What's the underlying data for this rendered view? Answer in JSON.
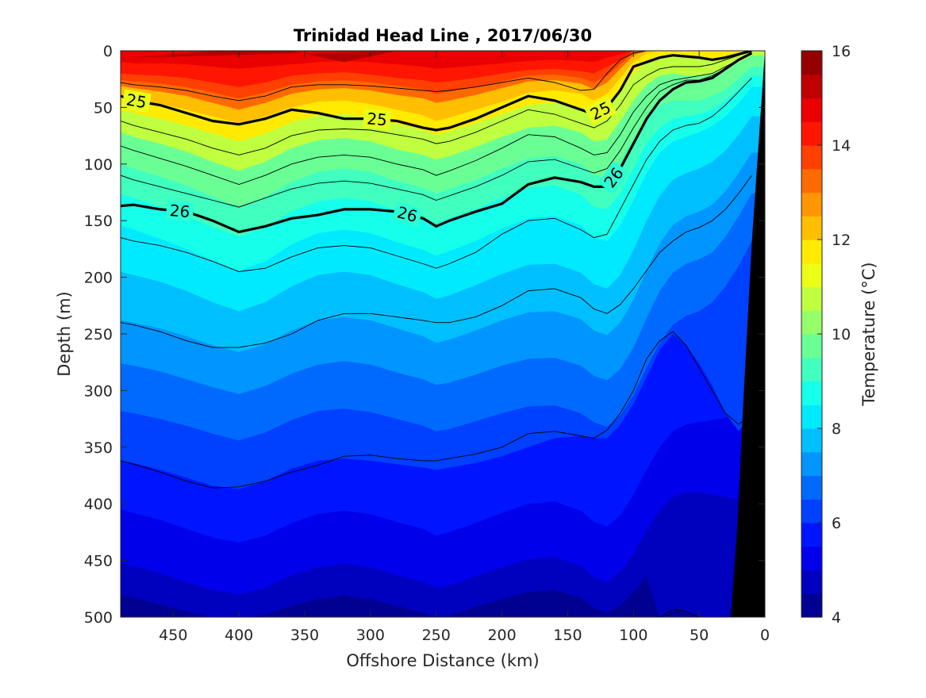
{
  "chart_data": {
    "type": "contour",
    "title": "Trinidad Head Line , 2017/06/30",
    "xlabel": "Offshore Distance (km)",
    "ylabel": "Depth (m)",
    "x_axis": {
      "lim": [
        490,
        0
      ],
      "reversed": true,
      "ticks": [
        "450",
        "400",
        "350",
        "300",
        "250",
        "200",
        "150",
        "100",
        "50",
        "0"
      ]
    },
    "y_axis": {
      "lim": [
        0,
        500
      ],
      "reversed": true,
      "ticks": [
        "0",
        "50",
        "100",
        "150",
        "200",
        "250",
        "300",
        "350",
        "400",
        "450",
        "500"
      ]
    },
    "colorbar": {
      "label": "Temperature (°C)",
      "range": [
        4,
        16
      ],
      "ticks": [
        "4",
        "6",
        "8",
        "10",
        "12",
        "14",
        "16"
      ],
      "colormap": "jet",
      "levels": 24
    },
    "x_km": [
      490,
      480,
      460,
      440,
      420,
      400,
      380,
      360,
      340,
      320,
      300,
      280,
      260,
      250,
      240,
      220,
      200,
      180,
      160,
      140,
      130,
      120,
      110,
      100,
      90,
      80,
      70,
      60,
      50,
      40,
      30,
      20,
      10
    ],
    "isotherm_depths": [
      {
        "temp": 14.5,
        "depths": [
          10,
          11,
          11,
          12,
          14,
          16,
          14,
          12,
          10,
          9,
          10,
          12,
          14,
          16,
          15,
          13,
          11,
          9,
          8,
          9,
          10,
          6,
          3,
          0,
          0,
          0,
          0,
          0,
          0,
          0,
          0,
          0,
          0
        ]
      },
      {
        "temp": 14.0,
        "depths": [
          20,
          21,
          22,
          24,
          28,
          32,
          28,
          22,
          20,
          19,
          21,
          24,
          26,
          28,
          27,
          24,
          20,
          17,
          16,
          18,
          20,
          14,
          8,
          0,
          0,
          0,
          0,
          0,
          0,
          0,
          0,
          0,
          0
        ]
      },
      {
        "temp": 13.5,
        "depths": [
          26,
          27,
          29,
          32,
          37,
          42,
          37,
          30,
          27,
          26,
          28,
          31,
          34,
          38,
          36,
          32,
          27,
          22,
          21,
          24,
          28,
          22,
          12,
          2,
          0,
          0,
          0,
          0,
          0,
          0,
          0,
          0,
          0
        ]
      },
      {
        "temp": 13.0,
        "depths": [
          31,
          33,
          36,
          40,
          46,
          52,
          46,
          38,
          34,
          33,
          35,
          39,
          42,
          46,
          44,
          39,
          33,
          27,
          26,
          29,
          34,
          28,
          16,
          4,
          0,
          0,
          0,
          0,
          0,
          0,
          0,
          0,
          0
        ]
      },
      {
        "temp": 12.0,
        "depths": [
          40,
          43,
          47,
          52,
          58,
          64,
          58,
          50,
          45,
          44,
          47,
          52,
          57,
          62,
          59,
          52,
          45,
          37,
          35,
          38,
          44,
          38,
          24,
          10,
          2,
          0,
          0,
          0,
          0,
          0,
          0,
          0,
          0
        ]
      },
      {
        "temp": 11.5,
        "depths": [
          52,
          55,
          60,
          66,
          73,
          80,
          73,
          63,
          57,
          56,
          59,
          65,
          70,
          74,
          71,
          64,
          56,
          48,
          46,
          50,
          56,
          50,
          36,
          20,
          10,
          6,
          4,
          5,
          6,
          8,
          6,
          3,
          0
        ]
      },
      {
        "temp": 10.5,
        "depths": [
          72,
          76,
          82,
          89,
          98,
          106,
          98,
          86,
          79,
          77,
          80,
          87,
          92,
          96,
          93,
          85,
          76,
          68,
          66,
          72,
          80,
          78,
          62,
          44,
          30,
          22,
          20,
          22,
          22,
          20,
          16,
          10,
          4
        ]
      },
      {
        "temp": 9.5,
        "depths": [
          100,
          104,
          111,
          119,
          129,
          138,
          129,
          116,
          107,
          104,
          107,
          115,
          121,
          126,
          122,
          114,
          104,
          95,
          93,
          100,
          110,
          112,
          98,
          78,
          58,
          48,
          44,
          44,
          44,
          40,
          34,
          24,
          14
        ]
      },
      {
        "temp": 9.0,
        "depths": [
          126,
          130,
          138,
          146,
          156,
          164,
          156,
          142,
          133,
          130,
          133,
          141,
          147,
          152,
          148,
          140,
          130,
          121,
          119,
          127,
          138,
          140,
          126,
          104,
          82,
          68,
          60,
          58,
          56,
          52,
          44,
          34,
          22
        ]
      },
      {
        "temp": 8.5,
        "depths": [
          154,
          158,
          166,
          175,
          185,
          194,
          186,
          171,
          161,
          158,
          161,
          169,
          176,
          181,
          177,
          168,
          157,
          148,
          146,
          154,
          165,
          168,
          154,
          132,
          108,
          90,
          80,
          76,
          72,
          66,
          58,
          46,
          32
        ]
      },
      {
        "temp": 8.0,
        "depths": [
          195,
          198,
          204,
          212,
          222,
          230,
          222,
          208,
          198,
          195,
          198,
          206,
          213,
          219,
          216,
          207,
          197,
          189,
          188,
          196,
          206,
          210,
          198,
          176,
          150,
          128,
          114,
          108,
          104,
          98,
          88,
          74,
          58
        ]
      },
      {
        "temp": 7.5,
        "depths": [
          238,
          240,
          245,
          252,
          260,
          266,
          259,
          247,
          238,
          235,
          238,
          245,
          252,
          258,
          255,
          247,
          238,
          231,
          230,
          237,
          247,
          251,
          240,
          220,
          194,
          170,
          154,
          146,
          142,
          136,
          124,
          108,
          90
        ]
      },
      {
        "temp": 7.0,
        "depths": [
          276,
          278,
          283,
          290,
          297,
          303,
          296,
          285,
          277,
          274,
          277,
          284,
          290,
          295,
          293,
          286,
          278,
          272,
          271,
          278,
          287,
          291,
          281,
          262,
          236,
          212,
          196,
          188,
          184,
          178,
          164,
          146,
          126
        ]
      },
      {
        "temp": 6.5,
        "depths": [
          318,
          320,
          325,
          331,
          338,
          344,
          337,
          326,
          318,
          316,
          319,
          325,
          331,
          336,
          334,
          327,
          320,
          314,
          313,
          320,
          328,
          332,
          322,
          304,
          280,
          258,
          242,
          234,
          230,
          222,
          208,
          190,
          168
        ]
      },
      {
        "temp": 6.0,
        "depths": [
          362,
          364,
          370,
          377,
          384,
          387,
          380,
          369,
          362,
          360,
          362,
          365,
          368,
          370,
          368,
          364,
          358,
          350,
          342,
          340,
          342,
          342,
          330,
          312,
          288,
          264,
          250,
          260,
          276,
          296,
          320,
          336,
          320
        ]
      },
      {
        "temp": 5.5,
        "depths": [
          405,
          408,
          414,
          422,
          430,
          434,
          428,
          417,
          409,
          406,
          409,
          416,
          422,
          428,
          425,
          417,
          408,
          400,
          398,
          406,
          416,
          420,
          410,
          392,
          370,
          350,
          336,
          330,
          328,
          326,
          324,
          320,
          300
        ]
      },
      {
        "temp": 5.0,
        "depths": [
          452,
          455,
          461,
          469,
          476,
          480,
          474,
          463,
          456,
          453,
          456,
          463,
          469,
          474,
          472,
          464,
          456,
          449,
          447,
          455,
          465,
          469,
          460,
          444,
          424,
          406,
          394,
          390,
          390,
          392,
          394,
          396,
          380
        ]
      },
      {
        "temp": 4.5,
        "depths": [
          480,
          483,
          489,
          495,
          500,
          500,
          498,
          490,
          484,
          481,
          484,
          490,
          496,
          500,
          498,
          491,
          484,
          478,
          476,
          483,
          492,
          496,
          490,
          478,
          464,
          500,
          494,
          496,
          500,
          500,
          500,
          500,
          500
        ]
      }
    ],
    "labeled_contours": [
      {
        "label": "25",
        "depths": [
          40,
          44,
          48,
          55,
          62,
          65,
          60,
          52,
          55,
          60,
          60,
          62,
          68,
          70,
          68,
          60,
          50,
          40,
          44,
          52,
          56,
          50,
          35,
          14,
          10,
          6,
          4,
          5,
          6,
          8,
          6,
          3,
          0
        ],
        "label_x": [
          478,
          295,
          125
        ]
      },
      {
        "label": "26",
        "depths": [
          137,
          136,
          140,
          142,
          150,
          160,
          155,
          148,
          145,
          140,
          140,
          142,
          148,
          155,
          150,
          142,
          135,
          118,
          112,
          116,
          120,
          120,
          104,
          82,
          60,
          44,
          34,
          28,
          27,
          24,
          16,
          8,
          2
        ],
        "label_x": [
          445,
          272,
          115
        ]
      }
    ],
    "thin_contours": [
      {
        "depths": [
          28,
          30,
          32,
          35,
          40,
          44,
          40,
          32,
          30,
          30,
          31,
          33,
          35,
          36,
          35,
          32,
          28,
          24,
          28,
          35,
          34,
          20,
          8,
          2,
          0,
          0,
          0,
          0,
          0,
          0,
          0,
          0,
          0
        ]
      },
      {
        "depths": [
          62,
          66,
          72,
          78,
          86,
          92,
          86,
          75,
          70,
          69,
          70,
          74,
          78,
          82,
          80,
          72,
          62,
          52,
          56,
          64,
          68,
          62,
          48,
          30,
          22,
          16,
          14,
          14,
          14,
          12,
          8,
          4,
          0
        ]
      },
      {
        "depths": [
          84,
          88,
          95,
          102,
          110,
          118,
          110,
          100,
          94,
          92,
          94,
          100,
          105,
          110,
          106,
          97,
          86,
          74,
          76,
          86,
          92,
          90,
          74,
          54,
          40,
          30,
          26,
          24,
          22,
          20,
          14,
          8,
          2
        ]
      },
      {
        "depths": [
          110,
          114,
          120,
          126,
          132,
          138,
          130,
          122,
          117,
          115,
          117,
          122,
          127,
          132,
          128,
          120,
          110,
          98,
          96,
          104,
          108,
          104,
          88,
          68,
          50,
          36,
          30,
          26,
          26,
          22,
          16,
          8,
          2
        ]
      },
      {
        "depths": [
          165,
          168,
          172,
          178,
          186,
          195,
          192,
          182,
          174,
          172,
          174,
          181,
          188,
          192,
          188,
          178,
          162,
          150,
          148,
          158,
          165,
          162,
          140,
          118,
          96,
          80,
          70,
          66,
          64,
          58,
          48,
          36,
          24
        ]
      },
      {
        "depths": [
          240,
          242,
          248,
          256,
          262,
          262,
          258,
          250,
          238,
          232,
          232,
          235,
          238,
          240,
          240,
          235,
          225,
          212,
          210,
          218,
          228,
          232,
          224,
          210,
          194,
          178,
          168,
          160,
          156,
          150,
          140,
          126,
          110
        ]
      },
      {
        "depths": [
          362,
          365,
          372,
          380,
          386,
          385,
          380,
          372,
          366,
          358,
          357,
          360,
          362,
          362,
          360,
          356,
          350,
          338,
          336,
          340,
          342,
          335,
          320,
          300,
          272,
          256,
          248,
          260,
          280,
          300,
          320,
          330,
          320
        ]
      },
      {
        "depths": [
          500,
          500,
          500,
          500,
          500,
          500,
          500,
          500,
          500,
          500,
          500,
          500,
          500,
          500,
          500,
          500,
          500,
          500,
          500,
          500,
          500,
          500,
          500,
          500,
          500,
          500,
          493,
          495,
          500,
          500,
          500,
          500,
          500
        ]
      }
    ],
    "bathymetry_km": [
      {
        "x": 0,
        "depth": 0
      },
      {
        "x": 10,
        "depth": 170
      },
      {
        "x": 16,
        "depth": 300
      },
      {
        "x": 21,
        "depth": 420
      },
      {
        "x": 26,
        "depth": 500
      }
    ],
    "grid": false,
    "legend": "none"
  }
}
